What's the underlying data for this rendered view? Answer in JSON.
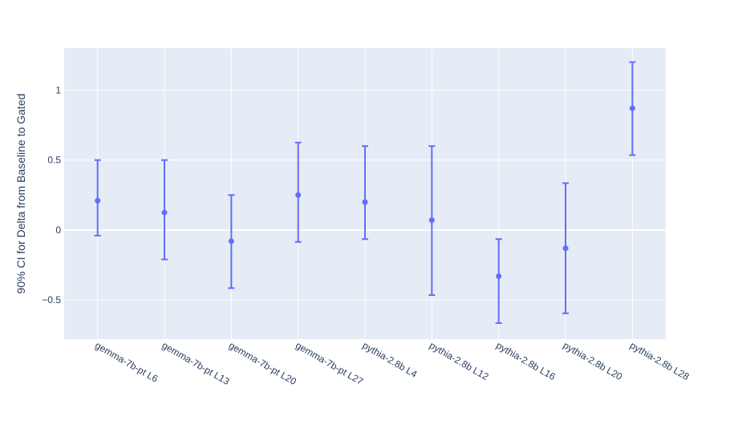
{
  "chart_data": {
    "type": "scatter",
    "title": "",
    "xlabel": "",
    "ylabel": "90% CI for Delta from Baseline to Gated",
    "categories": [
      "gemma-7b-pt L6",
      "gemma-7b-pt L13",
      "gemma-7b-pt L20",
      "gemma-7b-pt L27",
      "pythia-2.8b L4",
      "pythia-2.8b L12",
      "pythia-2.8b L16",
      "pythia-2.8b L20",
      "pythia-2.8b L28"
    ],
    "series": [
      {
        "values": [
          0.21,
          0.125,
          -0.08,
          0.25,
          0.2,
          0.07,
          -0.33,
          -0.13,
          0.87
        ],
        "lower": [
          -0.04,
          -0.21,
          -0.415,
          -0.085,
          -0.065,
          -0.465,
          -0.665,
          -0.595,
          0.535
        ],
        "upper": [
          0.5,
          0.5,
          0.25,
          0.625,
          0.6,
          0.6,
          -0.065,
          0.335,
          1.2
        ]
      }
    ],
    "ylim": [
      -0.78,
      1.3
    ],
    "yticks": [
      -0.5,
      0,
      0.5,
      1
    ],
    "ytick_labels": [
      "−0.5",
      "0",
      "0.5",
      "1"
    ],
    "grid": true,
    "colors": {
      "marker": "#636efa",
      "plot_bg": "#e5ecf6",
      "grid": "#ffffff",
      "text": "#2a3f5f"
    }
  }
}
